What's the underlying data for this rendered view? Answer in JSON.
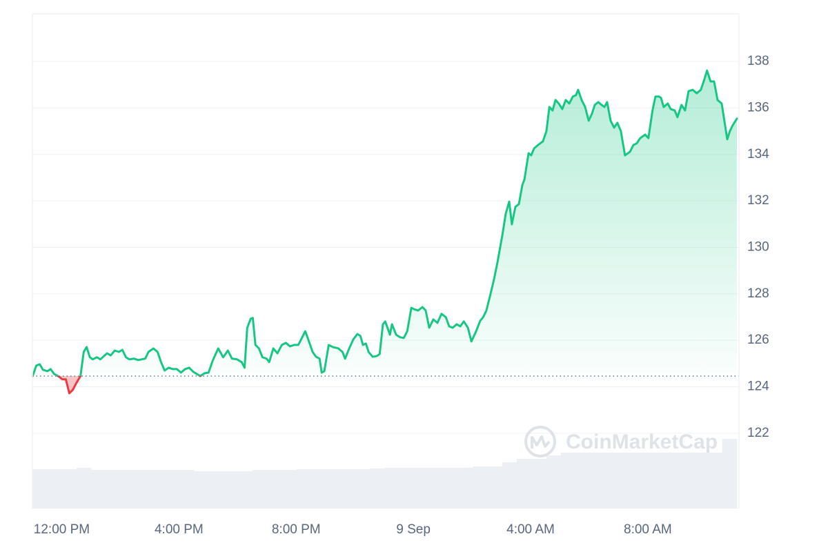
{
  "chart_data": {
    "type": "line",
    "watermark": "CoinMarketCap",
    "baseline": 124.46,
    "colors": {
      "up": "#16c784",
      "down": "#ea3943",
      "volume": "#eceff3"
    },
    "xlim": [
      -1,
      23.04
    ],
    "ylim": [
      118.76,
      140.05
    ],
    "yticks": [
      122,
      124,
      126,
      128,
      130,
      132,
      134,
      136,
      138
    ],
    "xticks": [
      {
        "value": 0,
        "label": "12:00 PM"
      },
      {
        "value": 4,
        "label": "4:00 PM"
      },
      {
        "value": 8,
        "label": "8:00 PM"
      },
      {
        "value": 12,
        "label": "9 Sep"
      },
      {
        "value": 16,
        "label": "4:00 AM"
      },
      {
        "value": 20,
        "label": "8:00 AM"
      }
    ],
    "grid": true,
    "x": [
      -0.99,
      -0.87,
      -0.75,
      -0.64,
      -0.49,
      -0.38,
      -0.26,
      -0.12,
      0.02,
      0.14,
      0.26,
      0.38,
      0.49,
      0.64,
      0.75,
      0.85,
      0.96,
      1.06,
      1.2,
      1.32,
      1.44,
      1.55,
      1.67,
      1.81,
      1.95,
      2.07,
      2.19,
      2.31,
      2.47,
      2.61,
      2.85,
      2.96,
      3.13,
      3.27,
      3.39,
      3.51,
      3.65,
      3.79,
      3.93,
      4.07,
      4.21,
      4.35,
      4.49,
      4.73,
      4.87,
      5.01,
      5.15,
      5.34,
      5.51,
      5.67,
      5.81,
      5.98,
      6.14,
      6.24,
      6.33,
      6.45,
      6.52,
      6.61,
      6.73,
      6.85,
      6.99,
      7.08,
      7.22,
      7.36,
      7.51,
      7.65,
      7.79,
      7.93,
      8.07,
      8.16,
      8.31,
      8.42,
      8.56,
      8.68,
      8.8,
      8.87,
      8.96,
      9.11,
      9.25,
      9.44,
      9.58,
      9.67,
      9.81,
      9.95,
      10.09,
      10.19,
      10.28,
      10.38,
      10.47,
      10.61,
      10.75,
      10.85,
      10.96,
      11.04,
      11.2,
      11.27,
      11.41,
      11.55,
      11.67,
      11.79,
      11.93,
      12.02,
      12.16,
      12.31,
      12.42,
      12.54,
      12.68,
      12.82,
      12.96,
      13.11,
      13.22,
      13.34,
      13.48,
      13.6,
      13.72,
      13.86,
      13.98,
      14.14,
      14.28,
      14.38,
      14.49,
      14.61,
      14.75,
      14.87,
      15.04,
      15.15,
      15.27,
      15.36,
      15.48,
      15.6,
      15.72,
      15.79,
      15.93,
      16.02,
      16.12,
      16.26,
      16.42,
      16.54,
      16.64,
      16.75,
      16.85,
      16.96,
      17.08,
      17.2,
      17.32,
      17.44,
      17.55,
      17.62,
      17.74,
      17.86,
      17.98,
      18.09,
      18.19,
      18.31,
      18.42,
      18.52,
      18.61,
      18.73,
      18.85,
      18.96,
      19.08,
      19.22,
      19.39,
      19.51,
      19.62,
      19.74,
      19.91,
      20.02,
      20.16,
      20.26,
      20.38,
      20.45,
      20.54,
      20.68,
      20.78,
      20.92,
      21.01,
      21.15,
      21.27,
      21.39,
      21.53,
      21.67,
      21.81,
      21.93,
      22.02,
      22.14,
      22.26,
      22.38,
      22.52,
      22.71,
      22.8,
      22.89,
      23.04
    ],
    "values": [
      124.46,
      124.91,
      124.97,
      124.73,
      124.67,
      124.76,
      124.55,
      124.46,
      124.32,
      124.32,
      123.72,
      123.87,
      124.14,
      124.46,
      125.5,
      125.71,
      125.27,
      125.18,
      125.27,
      125.18,
      125.32,
      125.44,
      125.35,
      125.56,
      125.5,
      125.59,
      125.27,
      125.18,
      125.21,
      125.15,
      125.21,
      125.5,
      125.65,
      125.5,
      125.06,
      124.7,
      124.82,
      124.76,
      124.76,
      124.61,
      124.76,
      124.82,
      124.64,
      124.46,
      124.58,
      124.61,
      125.12,
      125.65,
      125.27,
      125.56,
      125.21,
      125.18,
      125.06,
      124.82,
      126.54,
      126.93,
      126.96,
      125.8,
      125.65,
      125.27,
      125.21,
      125.06,
      125.65,
      125.44,
      125.8,
      125.89,
      125.74,
      125.8,
      125.8,
      126.01,
      126.39,
      126.01,
      125.5,
      125.29,
      125.21,
      124.61,
      124.67,
      125.8,
      125.71,
      125.65,
      125.5,
      125.21,
      125.65,
      126.04,
      126.27,
      126.19,
      125.8,
      125.86,
      125.5,
      125.29,
      125.32,
      125.41,
      126.69,
      126.81,
      126.24,
      126.69,
      126.24,
      126.13,
      126.1,
      126.39,
      127.4,
      127.34,
      127.28,
      127.43,
      127.28,
      126.54,
      126.9,
      126.75,
      127.14,
      126.99,
      126.6,
      126.54,
      126.69,
      126.6,
      126.81,
      126.54,
      125.95,
      126.39,
      126.84,
      126.99,
      127.28,
      127.88,
      128.62,
      129.36,
      130.55,
      131.44,
      131.97,
      130.99,
      131.74,
      131.86,
      132.69,
      132.92,
      134.05,
      133.96,
      134.26,
      134.41,
      134.56,
      135.0,
      136.04,
      135.89,
      136.34,
      136.19,
      135.95,
      136.34,
      136.19,
      136.49,
      136.55,
      136.78,
      136.34,
      136.04,
      135.45,
      135.74,
      136.13,
      136.25,
      136.13,
      136.04,
      136.25,
      135.45,
      135.15,
      135.36,
      135.0,
      133.96,
      134.11,
      134.41,
      134.47,
      134.7,
      134.85,
      134.7,
      135.89,
      136.49,
      136.49,
      136.43,
      136.04,
      136.19,
      135.95,
      135.89,
      135.6,
      136.13,
      135.89,
      136.72,
      136.78,
      136.63,
      136.78,
      137.23,
      137.61,
      137.14,
      137.14,
      136.34,
      136.19,
      134.65,
      135.0,
      135.24,
      135.54
    ],
    "volume": {
      "ylim": [
        0,
        100
      ],
      "values": [
        7.95,
        7.95,
        7.95,
        8.23,
        7.81,
        7.81,
        7.81,
        7.81,
        7.81,
        7.81,
        7.81,
        7.53,
        7.53,
        7.53,
        7.53,
        7.81,
        7.81,
        7.81,
        7.95,
        7.95,
        7.95,
        7.95,
        7.95,
        8.09,
        8.23,
        8.23,
        8.23,
        8.23,
        8.23,
        8.23,
        8.51,
        8.51,
        9.34,
        10.04,
        10.04,
        10.74,
        11.3,
        11.3,
        11.3,
        11.3,
        11.3,
        11.3,
        11.3,
        11.3,
        11.3,
        11.3,
        11.3,
        14.09
      ]
    }
  }
}
